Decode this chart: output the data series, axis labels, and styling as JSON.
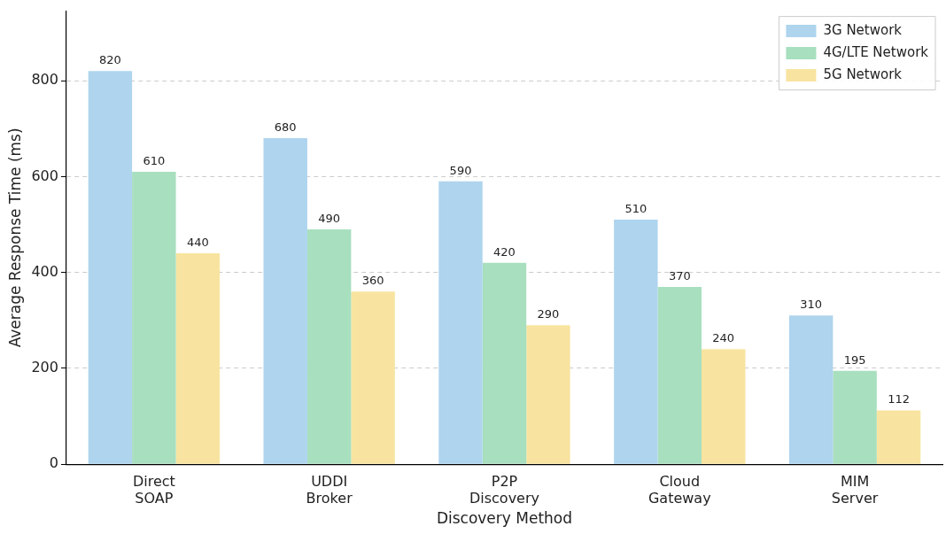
{
  "chart_data": {
    "type": "bar",
    "xlabel": "Discovery Method",
    "ylabel": "Average Response Time (ms)",
    "categories": [
      "Direct\nSOAP",
      "UDDI\nBroker",
      "P2P\nDiscovery",
      "Cloud\nGateway",
      "MIM\nServer"
    ],
    "series": [
      {
        "name": "3G Network",
        "color": "#aed4ee",
        "values": [
          820,
          680,
          590,
          510,
          310
        ]
      },
      {
        "name": "4G/LTE Network",
        "color": "#a8dfbf",
        "values": [
          610,
          490,
          420,
          370,
          195
        ]
      },
      {
        "name": "5G Network",
        "color": "#f8e4a0",
        "values": [
          440,
          360,
          290,
          240,
          112
        ]
      }
    ],
    "ylim": [
      0,
      945
    ],
    "yticks": [
      0,
      200,
      400,
      600,
      800
    ],
    "grid": "y",
    "legend": "top right",
    "data_labels": true
  }
}
